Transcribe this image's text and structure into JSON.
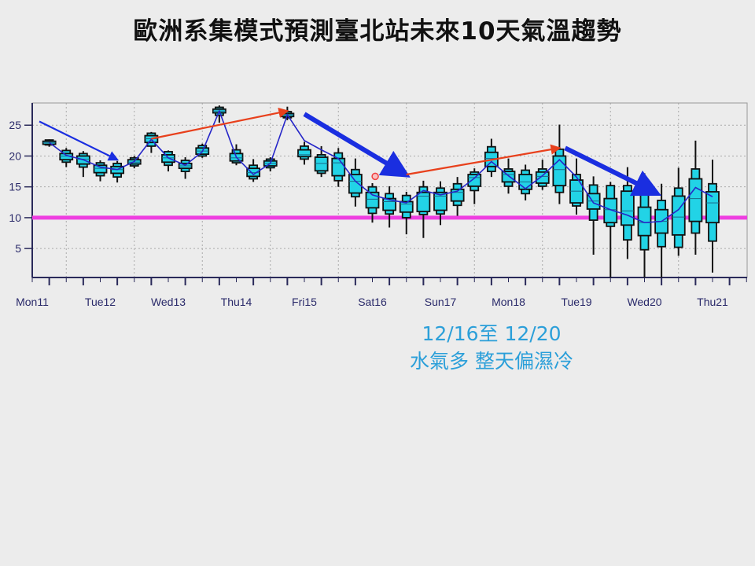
{
  "title": "歐洲系集模式預測臺北站未來10天氣溫趨勢",
  "note": {
    "line1": "12/16至 12/20",
    "line2": "水氣多 整天偏濕冷",
    "color": "#2b9fd9"
  },
  "chart_data": {
    "type": "box",
    "title": "歐洲系集模式預測臺北站未來10天氣溫趨勢",
    "xlabel": "",
    "ylabel": "",
    "ylim": [
      0.3,
      28.6
    ],
    "yticks": [
      5,
      10,
      15,
      20,
      25
    ],
    "xlim": [
      "Mon11 00:00",
      "Thu21 12:00"
    ],
    "xticks": [
      {
        "label": "Mon11",
        "color": "#2a2a6a"
      },
      {
        "label": "Tue12",
        "color": "#2a2a6a"
      },
      {
        "label": "Wed13",
        "color": "#2a2a6a"
      },
      {
        "label": "Thu14",
        "color": "#2a2a6a"
      },
      {
        "label": "Fri15",
        "color": "#2a2a6a"
      },
      {
        "label": "Sat16",
        "color": "#2a2a6a"
      },
      {
        "label": "Sun17",
        "color": "#e03a20"
      },
      {
        "label": "Mon18",
        "color": "#2a2a6a"
      },
      {
        "label": "Tue19",
        "color": "#2a2a6a"
      },
      {
        "label": "Wed20",
        "color": "#2a2a6a"
      },
      {
        "label": "Thu21",
        "color": "#2a2a6a"
      }
    ],
    "grid": "dotted, at 12:00 each day and every 5 units",
    "box_fields": [
      "min",
      "p10",
      "q1",
      "median",
      "q3",
      "p90",
      "max",
      "mean"
    ],
    "colors": {
      "box": "#22d3e6",
      "mean_line": "#2626c8",
      "reference_line": "#ee3ee0",
      "up_arrow": "#e8401c",
      "down_arrow": "#1a2ee0"
    },
    "boxes": [
      {
        "t": "Mon11 06:00",
        "v": [
          21.5,
          21.8,
          21.9,
          22.2,
          22.4,
          22.6,
          22.7,
          22.2
        ]
      },
      {
        "t": "Mon11 12:00",
        "v": [
          18.2,
          19.0,
          19.4,
          20.0,
          20.4,
          20.9,
          21.3,
          20.1
        ]
      },
      {
        "t": "Mon11 18:00",
        "v": [
          16.6,
          18.2,
          18.7,
          19.5,
          20.0,
          20.4,
          20.8,
          19.4
        ]
      },
      {
        "t": "Tue12 00:00",
        "v": [
          15.9,
          16.8,
          17.3,
          18.0,
          18.5,
          18.9,
          19.3,
          18.2
        ]
      },
      {
        "t": "Tue12 06:00",
        "v": [
          15.7,
          16.6,
          17.2,
          17.8,
          18.3,
          18.8,
          19.2,
          17.8
        ]
      },
      {
        "t": "Tue12 12:00",
        "v": [
          18.0,
          18.4,
          18.7,
          19.0,
          19.4,
          19.7,
          20.0,
          19.1
        ]
      },
      {
        "t": "Tue12 18:00",
        "v": [
          20.5,
          21.6,
          22.2,
          22.8,
          23.3,
          23.7,
          23.9,
          22.7
        ]
      },
      {
        "t": "Wed13 00:00",
        "v": [
          17.5,
          18.5,
          19.0,
          19.7,
          20.2,
          20.7,
          20.9,
          19.7
        ]
      },
      {
        "t": "Wed13 06:00",
        "v": [
          16.3,
          17.5,
          18.0,
          18.4,
          18.8,
          19.3,
          19.8,
          18.5
        ]
      },
      {
        "t": "Wed13 12:00",
        "v": [
          19.7,
          20.0,
          20.3,
          20.8,
          21.3,
          21.7,
          22.0,
          20.7
        ]
      },
      {
        "t": "Wed13 18:00",
        "v": [
          25.4,
          26.6,
          27.0,
          27.3,
          27.6,
          27.9,
          28.2,
          27.3
        ]
      },
      {
        "t": "Thu14 00:00",
        "v": [
          18.5,
          18.9,
          19.2,
          19.7,
          20.4,
          21.0,
          21.9,
          19.8
        ]
      },
      {
        "t": "Thu14 06:00",
        "v": [
          15.8,
          16.3,
          16.7,
          17.3,
          18.0,
          18.5,
          19.5,
          17.0
        ]
      },
      {
        "t": "Thu14 12:00",
        "v": [
          17.5,
          18.1,
          18.4,
          18.8,
          19.2,
          19.5,
          19.8,
          18.8
        ]
      },
      {
        "t": "Thu14 18:00",
        "v": [
          25.8,
          26.2,
          26.4,
          26.7,
          26.9,
          27.2,
          28.0,
          26.7
        ]
      },
      {
        "t": "Fri15 00:00",
        "v": [
          18.6,
          19.5,
          19.9,
          20.2,
          21.0,
          21.6,
          22.3,
          22.5
        ]
      },
      {
        "t": "Fri15 06:00",
        "v": [
          16.6,
          17.2,
          17.6,
          18.8,
          19.8,
          20.2,
          21.6,
          21.0
        ]
      },
      {
        "t": "Fri15 12:00",
        "v": [
          15.0,
          16.0,
          16.8,
          18.9,
          19.6,
          20.5,
          21.3,
          19.6
        ]
      },
      {
        "t": "Fri15 18:00",
        "v": [
          11.8,
          13.4,
          14.0,
          15.9,
          17.0,
          17.8,
          19.6,
          15.9
        ]
      },
      {
        "t": "Sat16 00:00",
        "v": [
          9.2,
          10.7,
          11.6,
          13.0,
          14.1,
          15.0,
          15.6,
          13.7
        ]
      },
      {
        "t": "Sat16 06:00",
        "v": [
          8.4,
          10.6,
          11.2,
          12.6,
          13.1,
          13.9,
          15.1,
          12.9
        ]
      },
      {
        "t": "Sat16 12:00",
        "v": [
          7.3,
          10.0,
          10.9,
          12.2,
          12.6,
          13.6,
          14.2,
          12.4
        ]
      },
      {
        "t": "Sat16 18:00",
        "v": [
          6.7,
          10.5,
          11.0,
          13.5,
          14.1,
          15.0,
          16.0,
          14.4
        ]
      },
      {
        "t": "Sun17 00:00",
        "v": [
          8.8,
          10.6,
          11.2,
          13.5,
          14.1,
          14.8,
          15.9,
          13.7
        ]
      },
      {
        "t": "Sun17 06:00",
        "v": [
          10.3,
          12.0,
          12.7,
          14.1,
          14.6,
          15.5,
          16.6,
          14.3
        ]
      },
      {
        "t": "Sun17 12:00",
        "v": [
          12.2,
          14.4,
          15.1,
          16.5,
          17.0,
          17.4,
          18.0,
          16.4
        ]
      },
      {
        "t": "Sun17 18:00",
        "v": [
          16.6,
          17.5,
          18.3,
          19.6,
          20.6,
          21.5,
          22.8,
          19.1
        ]
      },
      {
        "t": "Mon18 00:00",
        "v": [
          13.9,
          15.1,
          15.8,
          17.0,
          17.5,
          17.9,
          19.6,
          16.8
        ]
      },
      {
        "t": "Mon18 06:00",
        "v": [
          12.8,
          13.9,
          14.6,
          15.8,
          17.0,
          17.7,
          18.6,
          14.7
        ]
      },
      {
        "t": "Mon18 12:00",
        "v": [
          14.5,
          15.1,
          15.6,
          16.7,
          17.4,
          17.9,
          19.4,
          16.8
        ]
      },
      {
        "t": "Mon18 18:00",
        "v": [
          12.2,
          14.1,
          15.2,
          17.8,
          20.0,
          21.1,
          25.1,
          19.4
        ]
      },
      {
        "t": "Tue19 00:00",
        "v": [
          10.5,
          11.9,
          12.4,
          14.3,
          16.1,
          17.0,
          19.6,
          16.6
        ]
      },
      {
        "t": "Tue19 06:00",
        "v": [
          4.0,
          9.6,
          11.4,
          12.7,
          13.9,
          15.3,
          16.7,
          12.4
        ]
      },
      {
        "t": "Tue19 12:00",
        "v": [
          0.3,
          8.6,
          9.2,
          11.3,
          13.1,
          15.2,
          15.8,
          11.3
        ]
      },
      {
        "t": "Tue19 18:00",
        "v": [
          3.3,
          6.4,
          8.8,
          11.1,
          14.3,
          15.2,
          18.2,
          10.4
        ]
      },
      {
        "t": "Wed20 00:00",
        "v": [
          0.3,
          4.8,
          7.1,
          9.2,
          11.7,
          13.9,
          17.2,
          9.2
        ]
      },
      {
        "t": "Wed20 06:00",
        "v": [
          0.3,
          5.3,
          7.5,
          9.4,
          11.3,
          12.8,
          15.5,
          9.4
        ]
      },
      {
        "t": "Wed20 12:00",
        "v": [
          3.8,
          5.2,
          7.2,
          10.1,
          13.5,
          14.8,
          18.1,
          11.3
        ]
      },
      {
        "t": "Wed20 18:00",
        "v": [
          4.0,
          7.5,
          9.4,
          13.1,
          16.3,
          17.9,
          22.5,
          14.9
        ]
      },
      {
        "t": "Thu21 00:00",
        "v": [
          1.1,
          6.2,
          9.2,
          12.4,
          14.2,
          15.5,
          19.4,
          13.4
        ]
      }
    ],
    "reference_line": {
      "value": 10
    },
    "annotations": [
      {
        "kind": "arrow",
        "color": "down_arrow",
        "weight": "thin",
        "from": [
          "Mon11 02:30",
          25.6
        ],
        "to": [
          "Tue12 06:00",
          19.4
        ]
      },
      {
        "kind": "arrow",
        "color": "up_arrow",
        "weight": "thin",
        "from": [
          "Tue12 18:00",
          22.8
        ],
        "to": [
          "Thu14 18:00",
          27.3
        ]
      },
      {
        "kind": "arrow",
        "color": "down_arrow",
        "weight": "thick",
        "from": [
          "Fri15 00:00",
          26.8
        ],
        "to": [
          "Sat16 12:00",
          16.9
        ]
      },
      {
        "kind": "arrow",
        "color": "up_arrow",
        "weight": "thin",
        "from": [
          "Sat16 12:00",
          17.0
        ],
        "to": [
          "Mon18 18:00",
          21.3
        ]
      },
      {
        "kind": "arrow",
        "color": "down_arrow",
        "weight": "thick",
        "from": [
          "Mon18 20:00",
          21.3
        ],
        "to": [
          "Wed20 04:30",
          13.9
        ]
      },
      {
        "kind": "dot",
        "color": "#f04040",
        "at": [
          "Sat16 01:00",
          16.7
        ]
      }
    ]
  }
}
